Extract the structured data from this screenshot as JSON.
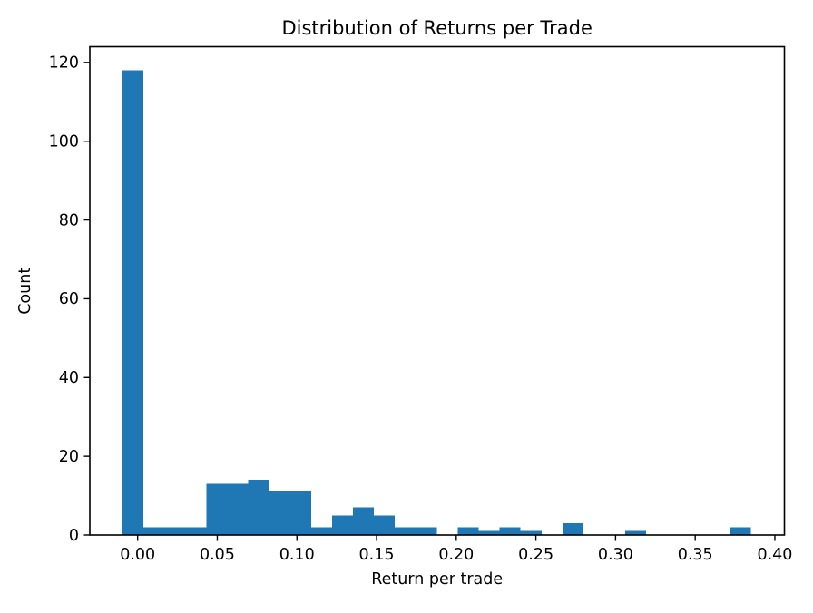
{
  "chart_data": {
    "type": "bar",
    "subtype": "histogram",
    "title": "Distribution of Returns per Trade",
    "xlabel": "Return per trade",
    "ylabel": "Count",
    "bin_start": -0.0095,
    "bin_width": 0.01315,
    "counts": [
      118,
      2,
      2,
      2,
      13,
      13,
      14,
      11,
      11,
      2,
      5,
      7,
      5,
      2,
      2,
      0,
      2,
      1,
      2,
      1,
      0,
      3,
      0,
      0,
      1,
      0,
      0,
      0,
      0,
      2
    ],
    "xlim": [
      -0.03,
      0.406
    ],
    "ylim": [
      0,
      124
    ],
    "x_tick_values": [
      0.0,
      0.05,
      0.1,
      0.15,
      0.2,
      0.25,
      0.3,
      0.35,
      0.4
    ],
    "x_tick_labels": [
      "0.00",
      "0.05",
      "0.10",
      "0.15",
      "0.20",
      "0.25",
      "0.30",
      "0.35",
      "0.40"
    ],
    "y_tick_values": [
      0,
      20,
      40,
      60,
      80,
      100,
      120
    ],
    "y_tick_labels": [
      "0",
      "20",
      "40",
      "60",
      "80",
      "100",
      "120"
    ],
    "bar_color": "#1f77b4",
    "axis_color": "#000000",
    "grid": false,
    "legend_position": "none"
  }
}
